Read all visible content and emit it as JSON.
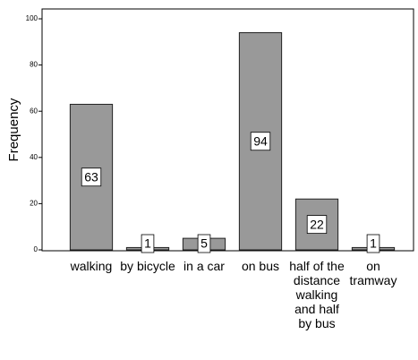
{
  "chart_data": {
    "type": "bar",
    "y_label": "Frequency",
    "categories": [
      "walking",
      "by bicycle",
      "in a car",
      "on bus",
      "half of the distance walking and half by bus",
      "on tramway"
    ],
    "values": [
      63,
      1,
      5,
      94,
      22,
      1
    ],
    "color": "#999999",
    "ylim": [
      0,
      100
    ],
    "yticks": [
      0,
      20,
      40,
      60,
      80,
      100
    ],
    "grid": false
  }
}
